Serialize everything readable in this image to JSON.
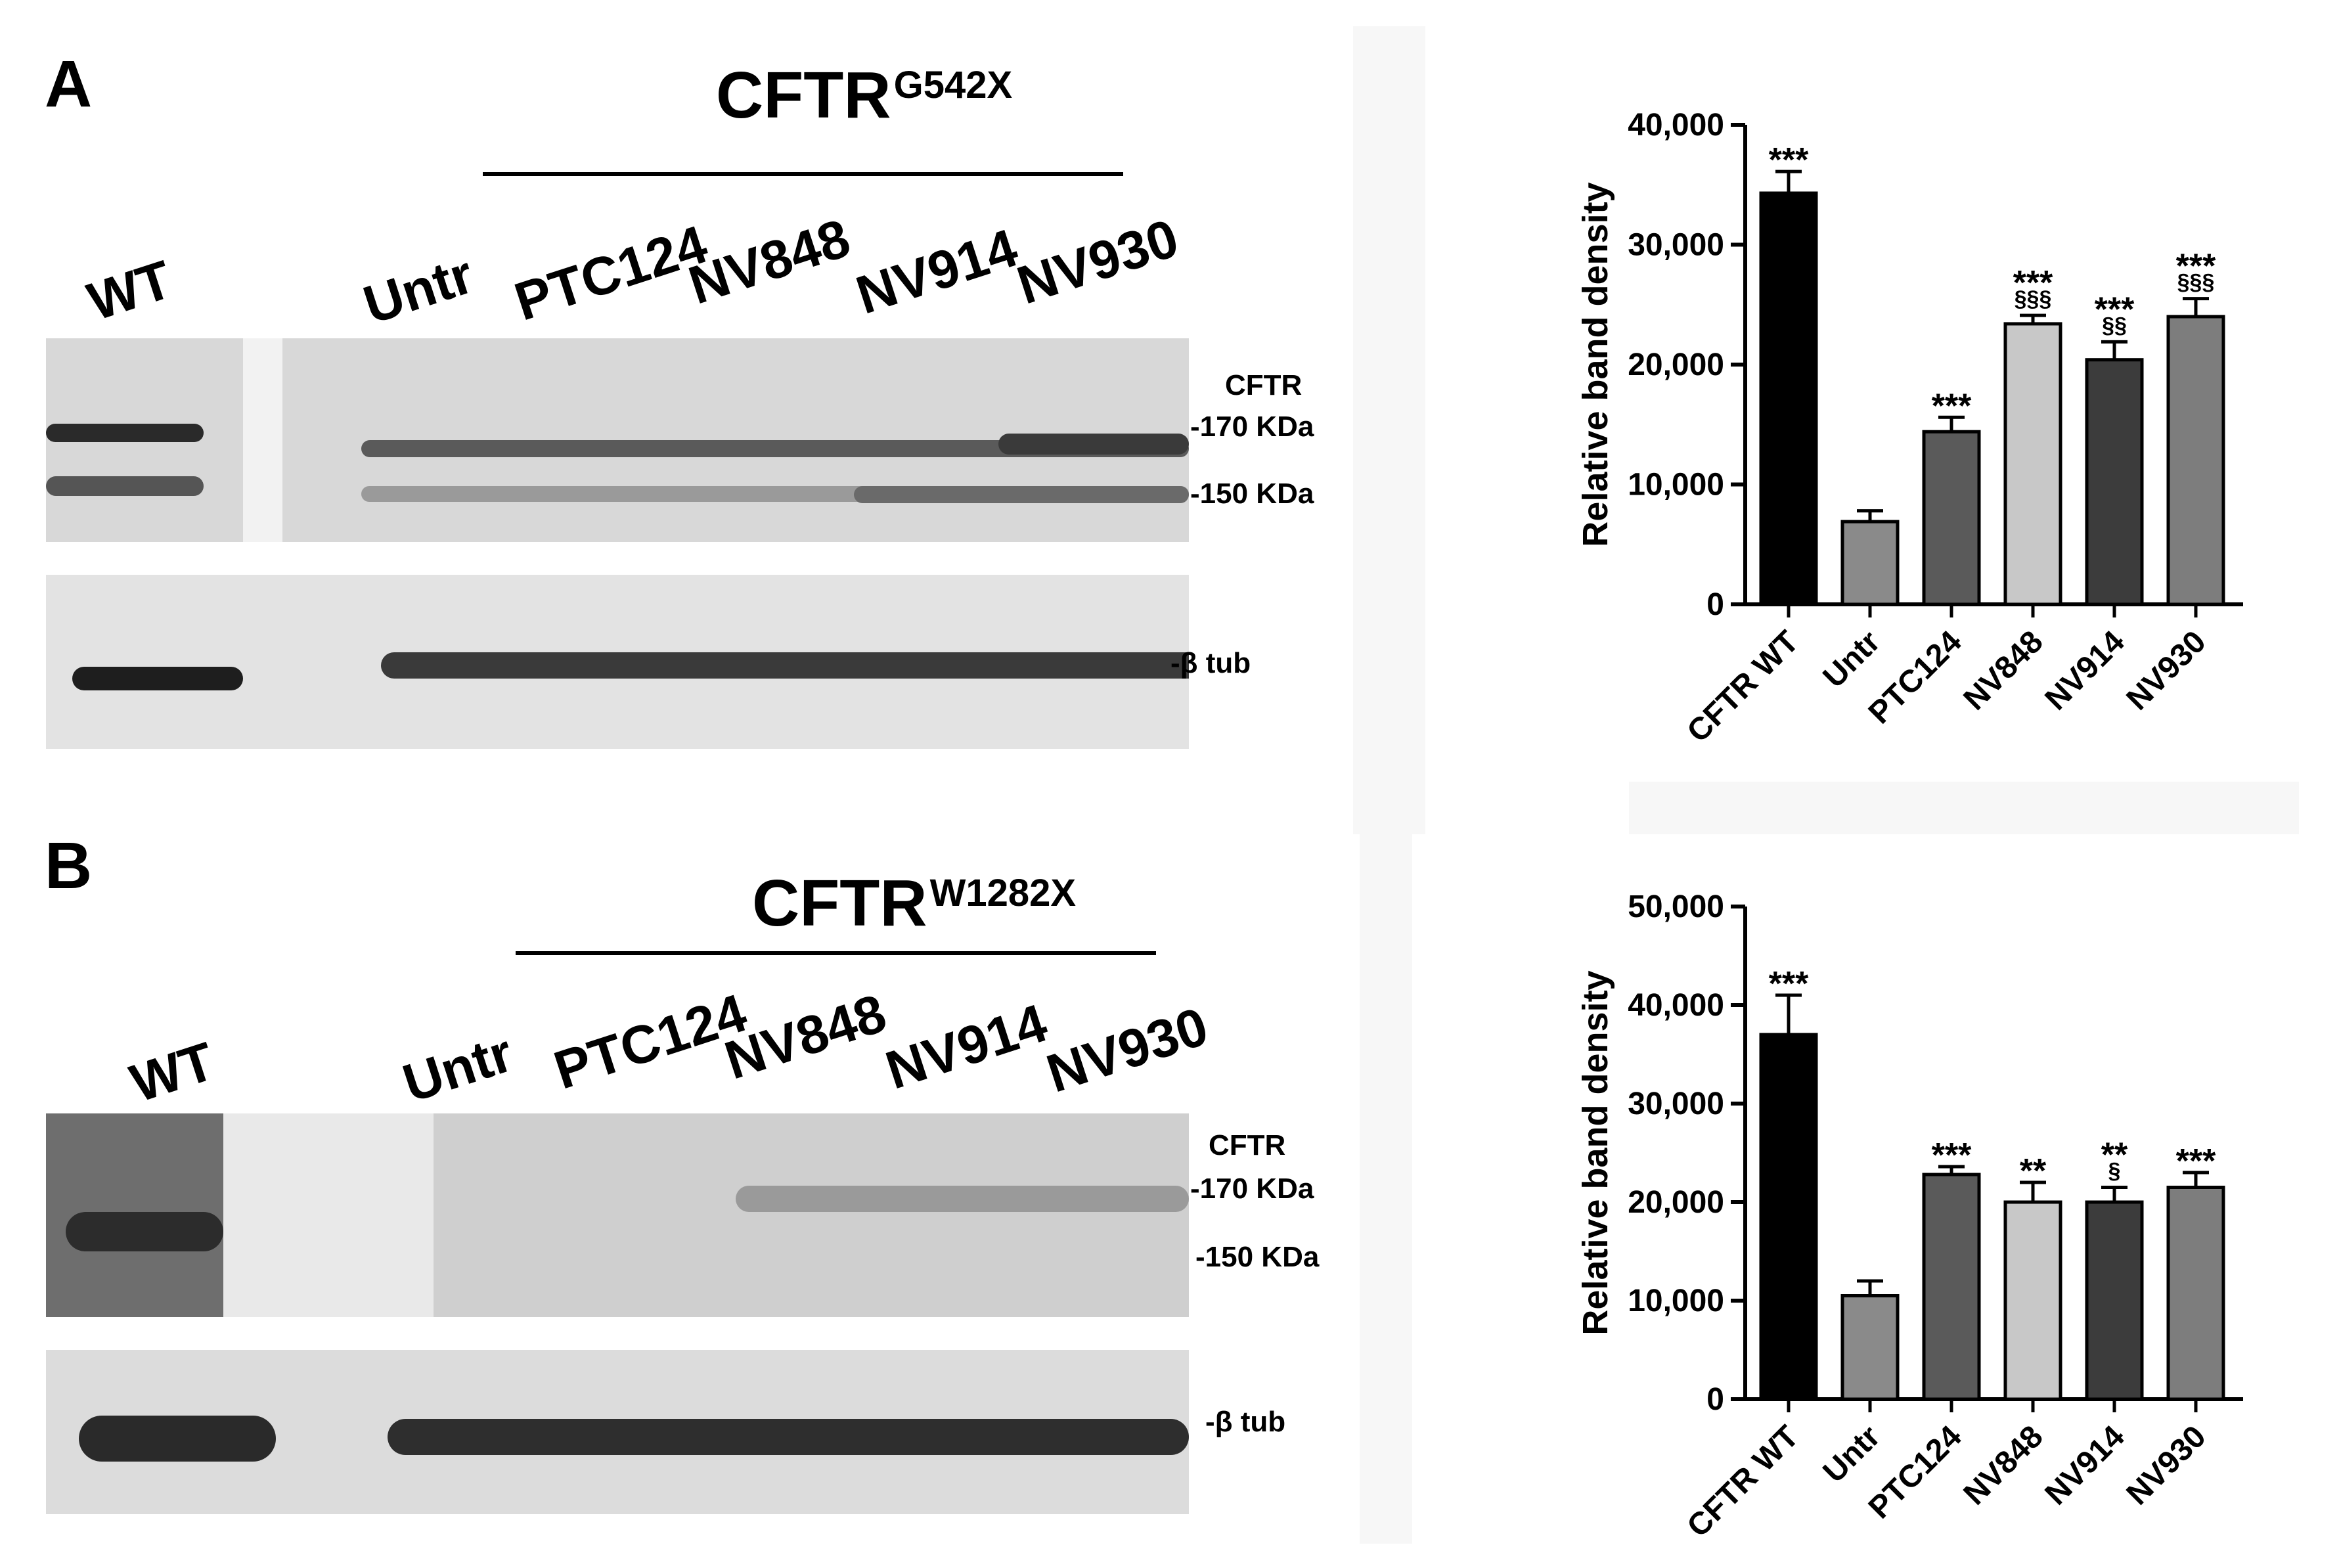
{
  "panels": [
    {
      "letter": "A",
      "title_main": "CFTR",
      "title_sup": "G542X",
      "lanes": [
        "WT",
        "Untr",
        "PTC124",
        "NV848",
        "NV914",
        "NV930"
      ],
      "markers": {
        "cftr": "CFTR",
        "kda170": "-170 KDa",
        "kda150": "-150 KDa",
        "tub": "-β tub"
      }
    },
    {
      "letter": "B",
      "title_main": "CFTR",
      "title_sup": "W1282X",
      "lanes": [
        "WT",
        "Untr",
        "PTC124",
        "NV848",
        "NV914",
        "NV930"
      ],
      "markers": {
        "cftr": "CFTR",
        "kda170": "-170 KDa",
        "kda150": "-150 KDa",
        "tub": "-β tub"
      }
    }
  ],
  "chart_data": [
    {
      "type": "bar",
      "panel": "A",
      "ylabel": "Relative band density",
      "ylim": [
        0,
        40000
      ],
      "yticks": [
        "0",
        "10,000",
        "20,000",
        "30,000",
        "40,000"
      ],
      "ytick_values": [
        0,
        10000,
        20000,
        30000,
        40000
      ],
      "categories": [
        "CFTR WT",
        "Untr",
        "PTC124",
        "NV848",
        "NV914",
        "NV930"
      ],
      "values": [
        34300,
        6900,
        14400,
        23400,
        20400,
        24000
      ],
      "errors": [
        1800,
        900,
        1200,
        700,
        1500,
        1500
      ],
      "colors": [
        "#000000",
        "#8a8a8a",
        "#5a5a5a",
        "#c8c8c8",
        "#3c3c3c",
        "#7d7d7d"
      ],
      "sig_top": [
        "***",
        "",
        "***",
        "***",
        "***",
        "***"
      ],
      "sig_bottom": [
        "",
        "",
        "",
        "§§§",
        "§§",
        "§§§"
      ]
    },
    {
      "type": "bar",
      "panel": "B",
      "ylabel": "Relative band density",
      "ylim": [
        0,
        50000
      ],
      "yticks": [
        "0",
        "10,000",
        "20,000",
        "30,000",
        "40,000",
        "50,000"
      ],
      "ytick_values": [
        0,
        10000,
        20000,
        30000,
        40000,
        50000
      ],
      "categories": [
        "CFTR WT",
        "Untr",
        "PTC124",
        "NV848",
        "NV914",
        "NV930"
      ],
      "values": [
        37000,
        10500,
        22800,
        20000,
        20000,
        21500
      ],
      "errors": [
        4000,
        1500,
        800,
        2000,
        1500,
        1500
      ],
      "colors": [
        "#000000",
        "#8a8a8a",
        "#5a5a5a",
        "#c8c8c8",
        "#3c3c3c",
        "#7d7d7d"
      ],
      "sig_top": [
        "***",
        "",
        "***",
        "**",
        "**",
        "***"
      ],
      "sig_bottom": [
        "",
        "",
        "",
        "",
        "§",
        ""
      ]
    }
  ]
}
